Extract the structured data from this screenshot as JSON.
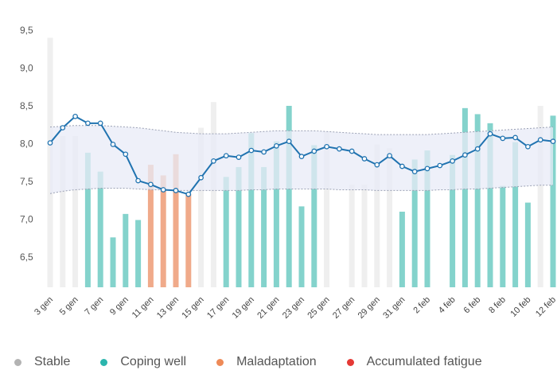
{
  "chart_data": {
    "type": "bar+line",
    "title": "",
    "xlabel": "",
    "ylabel": "",
    "ylim": [
      6.1,
      9.5
    ],
    "yticks": [
      "9,5",
      "9,0",
      "8,5",
      "8,0",
      "7,5",
      "7,0",
      "6,5"
    ],
    "ytick_values": [
      9.5,
      9.0,
      8.5,
      8.0,
      7.5,
      7.0,
      6.5
    ],
    "x_start": "3 gen",
    "x_tick_labels": [
      "3 gen",
      "5 gen",
      "7 gen",
      "9 gen",
      "11 gen",
      "13 gen",
      "15 gen",
      "17 gen",
      "19 gen",
      "21 gen",
      "23 gen",
      "25 gen",
      "27 gen",
      "29 gen",
      "31 gen",
      "2 feb",
      "4 feb",
      "6 feb",
      "8 feb",
      "10 feb",
      "12 feb"
    ],
    "days": 41,
    "bars": [
      {
        "day": 0,
        "value": 9.4,
        "status": "stable"
      },
      {
        "day": 1,
        "value": 8.1,
        "status": "stable"
      },
      {
        "day": 2,
        "value": 8.1,
        "status": "stable"
      },
      {
        "day": 3,
        "value": 7.88,
        "status": "coping"
      },
      {
        "day": 4,
        "value": 7.63,
        "status": "coping"
      },
      {
        "day": 5,
        "value": 6.76,
        "status": "coping"
      },
      {
        "day": 6,
        "value": 7.07,
        "status": "coping"
      },
      {
        "day": 7,
        "value": 6.99,
        "status": "coping"
      },
      {
        "day": 8,
        "value": 7.72,
        "status": "maladaptation"
      },
      {
        "day": 9,
        "value": 7.58,
        "status": "maladaptation"
      },
      {
        "day": 10,
        "value": 7.86,
        "status": "maladaptation"
      },
      {
        "day": 11,
        "value": 7.33,
        "status": "maladaptation"
      },
      {
        "day": 12,
        "value": 8.21,
        "status": "stable"
      },
      {
        "day": 13,
        "value": 8.55,
        "status": "stable"
      },
      {
        "day": 14,
        "value": 7.56,
        "status": "coping"
      },
      {
        "day": 15,
        "value": 7.69,
        "status": "coping"
      },
      {
        "day": 16,
        "value": 8.14,
        "status": "coping"
      },
      {
        "day": 17,
        "value": 7.69,
        "status": "coping"
      },
      {
        "day": 18,
        "value": 8.03,
        "status": "coping"
      },
      {
        "day": 19,
        "value": 8.5,
        "status": "coping"
      },
      {
        "day": 20,
        "value": 7.17,
        "status": "coping"
      },
      {
        "day": 21,
        "value": 7.98,
        "status": "coping"
      },
      {
        "day": 22,
        "value": 8.16,
        "status": "stable"
      },
      {
        "day": 24,
        "value": 7.46,
        "status": "stable"
      },
      {
        "day": 25,
        "value": 7.46,
        "status": "stable"
      },
      {
        "day": 26,
        "value": 7.99,
        "status": "stable"
      },
      {
        "day": 27,
        "value": 7.94,
        "status": "stable"
      },
      {
        "day": 28,
        "value": 7.1,
        "status": "coping"
      },
      {
        "day": 29,
        "value": 7.79,
        "status": "coping"
      },
      {
        "day": 30,
        "value": 7.91,
        "status": "coping"
      },
      {
        "day": 32,
        "value": 7.85,
        "status": "coping"
      },
      {
        "day": 33,
        "value": 8.47,
        "status": "coping"
      },
      {
        "day": 34,
        "value": 8.39,
        "status": "coping"
      },
      {
        "day": 35,
        "value": 8.27,
        "status": "coping"
      },
      {
        "day": 36,
        "value": 7.44,
        "status": "coping"
      },
      {
        "day": 37,
        "value": 8.02,
        "status": "coping"
      },
      {
        "day": 38,
        "value": 7.22,
        "status": "coping"
      },
      {
        "day": 39,
        "value": 8.5,
        "status": "stable"
      },
      {
        "day": 40,
        "value": 8.37,
        "status": "coping"
      }
    ],
    "line": {
      "name": "trend",
      "values": [
        8.01,
        8.21,
        8.36,
        8.27,
        8.27,
        7.99,
        7.86,
        7.51,
        7.46,
        7.39,
        7.38,
        7.33,
        7.55,
        7.77,
        7.84,
        7.82,
        7.91,
        7.89,
        7.97,
        8.03,
        7.83,
        7.9,
        7.96,
        7.93,
        7.9,
        7.8,
        7.72,
        7.84,
        7.7,
        7.63,
        7.67,
        7.71,
        7.77,
        7.85,
        7.93,
        8.13,
        8.07,
        8.08,
        7.96,
        8.05,
        8.03
      ]
    },
    "band": {
      "upper": [
        8.22,
        8.23,
        8.24,
        8.24,
        8.24,
        8.23,
        8.22,
        8.21,
        8.19,
        8.17,
        8.15,
        8.14,
        8.13,
        8.13,
        8.13,
        8.14,
        8.15,
        8.16,
        8.17,
        8.17,
        8.17,
        8.17,
        8.16,
        8.15,
        8.14,
        8.13,
        8.12,
        8.12,
        8.12,
        8.12,
        8.12,
        8.13,
        8.14,
        8.15,
        8.16,
        8.17,
        8.18,
        8.19,
        8.2,
        8.21,
        8.22
      ],
      "lower": [
        7.34,
        7.37,
        7.39,
        7.4,
        7.41,
        7.41,
        7.41,
        7.4,
        7.39,
        7.39,
        7.38,
        7.38,
        7.38,
        7.38,
        7.38,
        7.38,
        7.39,
        7.39,
        7.4,
        7.4,
        7.4,
        7.4,
        7.4,
        7.39,
        7.39,
        7.39,
        7.38,
        7.38,
        7.38,
        7.38,
        7.38,
        7.39,
        7.39,
        7.4,
        7.4,
        7.41,
        7.42,
        7.43,
        7.44,
        7.45,
        7.45
      ]
    },
    "legend": [
      {
        "key": "stable",
        "label": "Stable",
        "color": "#b3b3b3"
      },
      {
        "key": "coping",
        "label": "Coping well",
        "color": "#2bb5ad"
      },
      {
        "key": "maladaptation",
        "label": "Maladaptation",
        "color": "#ee8a57"
      },
      {
        "key": "fatigue",
        "label": "Accumulated fatigue",
        "color": "#e53935"
      }
    ],
    "bar_colors": {
      "stable": "#efefef",
      "coping": "#84d3cc",
      "maladaptation": "#f0aa8a",
      "fatigue": "#ef9a9a"
    },
    "line_color": "#2073b0",
    "band_color": "#e8ebf7"
  },
  "legend": {
    "stable": "Stable",
    "coping": "Coping well",
    "maladaptation": "Maladaptation",
    "fatigue": "Accumulated fatigue"
  }
}
